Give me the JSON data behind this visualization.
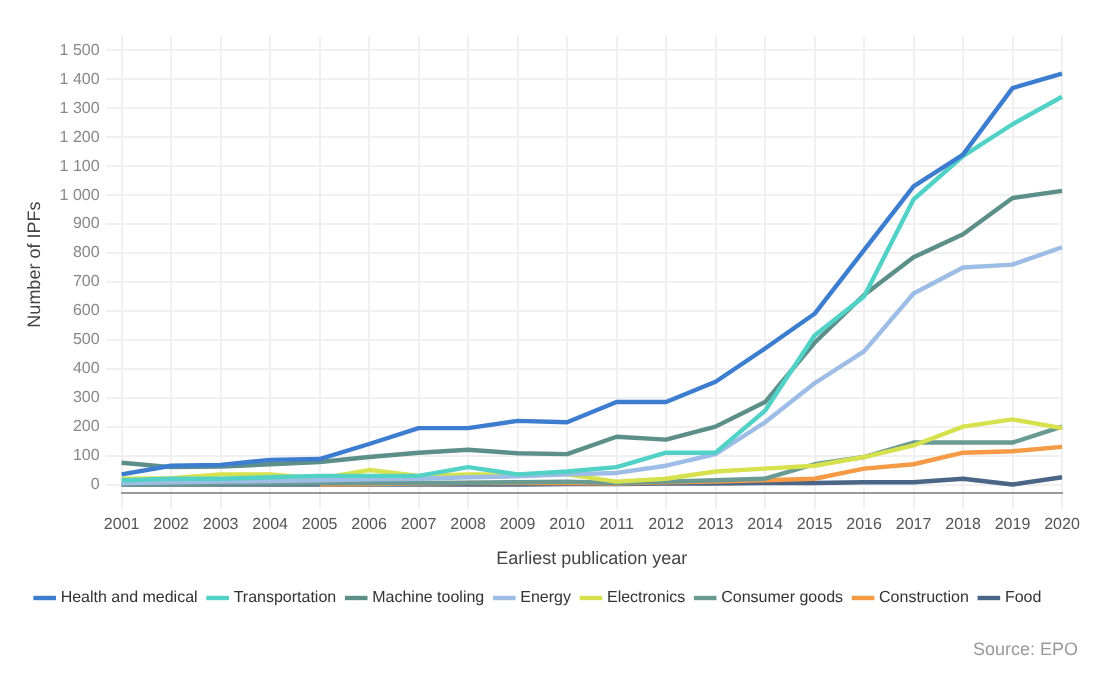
{
  "chart_data": {
    "type": "line",
    "xlabel": "Earliest publication year",
    "ylabel": "Number of IPFs",
    "annotations": [
      "Source: EPO"
    ],
    "categories": [
      "2001",
      "2002",
      "2003",
      "2004",
      "2005",
      "2006",
      "2007",
      "2008",
      "2009",
      "2010",
      "2011",
      "2012",
      "2013",
      "2014",
      "2015",
      "2016",
      "2017",
      "2018",
      "2019",
      "2020"
    ],
    "ylim": [
      -30,
      1550
    ],
    "yticks": [
      0,
      100,
      200,
      300,
      400,
      500,
      600,
      700,
      800,
      900,
      {
        "value": 1000,
        "label": "1 000"
      },
      {
        "value": 1100,
        "label": "1 100"
      },
      {
        "value": 1200,
        "label": "1 200"
      },
      {
        "value": 1300,
        "label": "1 300"
      },
      {
        "value": 1400,
        "label": "1 400"
      },
      {
        "value": 1500,
        "label": "1 500"
      }
    ],
    "grid": true,
    "legend": "bottom",
    "marker": "none",
    "line_style": "solid",
    "series": [
      {
        "name": "Health and medical",
        "color": "#3d7dd0",
        "values": [
          35,
          65,
          68,
          85,
          88,
          140,
          195,
          195,
          220,
          215,
          285,
          285,
          355,
          470,
          590,
          810,
          1030,
          1140,
          1370,
          1420
        ]
      },
      {
        "name": "Transportation",
        "color": "#52d1c6",
        "values": [
          15,
          20,
          20,
          25,
          30,
          30,
          30,
          60,
          35,
          45,
          60,
          110,
          110,
          255,
          515,
          650,
          985,
          1135,
          1245,
          1340
        ]
      },
      {
        "name": "Machine tooling",
        "color": "#5c8f8a",
        "values": [
          75,
          60,
          62,
          70,
          78,
          95,
          110,
          120,
          108,
          105,
          165,
          155,
          200,
          285,
          490,
          655,
          785,
          865,
          990,
          1015
        ]
      },
      {
        "name": "Energy",
        "color": "#9dbde6",
        "values": [
          5,
          8,
          10,
          12,
          15,
          18,
          20,
          25,
          28,
          35,
          40,
          65,
          105,
          215,
          350,
          460,
          660,
          750,
          760,
          820
        ]
      },
      {
        "name": "Electronics",
        "color": "#d7e14e",
        "values": [
          20,
          22,
          35,
          35,
          20,
          50,
          30,
          35,
          35,
          35,
          10,
          20,
          45,
          55,
          65,
          95,
          135,
          200,
          225,
          195
        ]
      },
      {
        "name": "Consumer goods",
        "color": "#6a9a94",
        "values": [
          2,
          2,
          3,
          3,
          4,
          5,
          5,
          6,
          8,
          10,
          5,
          10,
          15,
          20,
          70,
          95,
          145,
          145,
          145,
          200
        ]
      },
      {
        "name": "Construction",
        "color": "#f59a45",
        "values": [
          null,
          null,
          null,
          null,
          0,
          2,
          3,
          5,
          5,
          5,
          3,
          8,
          10,
          15,
          20,
          55,
          70,
          110,
          115,
          130
        ]
      },
      {
        "name": "Food",
        "color": "#4a6585",
        "values": [
          0,
          0,
          0,
          0,
          0,
          0,
          0,
          0,
          0,
          2,
          2,
          3,
          3,
          5,
          5,
          8,
          8,
          20,
          0,
          25
        ]
      }
    ]
  }
}
